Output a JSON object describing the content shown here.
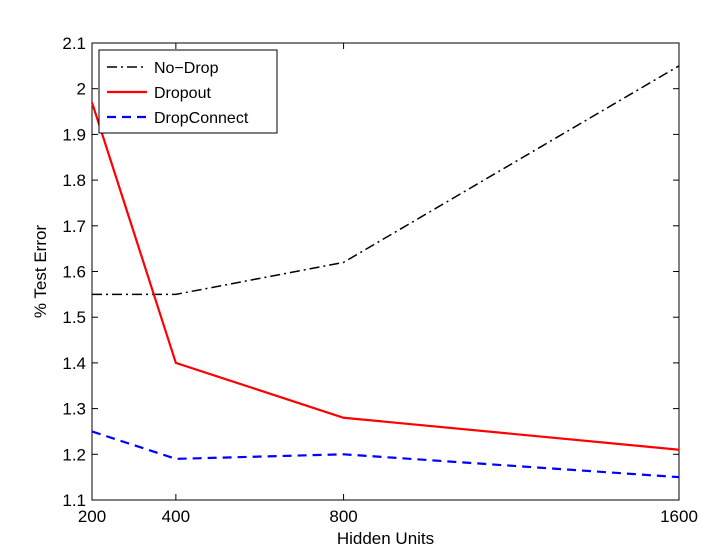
{
  "chart_data": {
    "type": "line",
    "title": "",
    "xlabel": "Hidden Units",
    "ylabel": "% Test Error",
    "x": [
      200,
      400,
      800,
      1600
    ],
    "x_ticks": [
      200,
      400,
      800,
      1600
    ],
    "x_tick_labels": [
      "200",
      "400",
      "800",
      "1600"
    ],
    "xlim": [
      200,
      1600
    ],
    "ylim": [
      1.1,
      2.1
    ],
    "y_ticks": [
      1.1,
      1.2,
      1.3,
      1.4,
      1.5,
      1.6,
      1.7,
      1.8,
      1.9,
      2.0,
      2.1
    ],
    "y_tick_labels": [
      "1.1",
      "1.2",
      "1.3",
      "1.4",
      "1.5",
      "1.6",
      "1.7",
      "1.8",
      "1.9",
      "2",
      "2.1"
    ],
    "grid": false,
    "legend_position": "top-left",
    "series": [
      {
        "name": "No−Drop",
        "values": [
          1.55,
          1.55,
          1.62,
          2.05
        ],
        "color": "#000000",
        "style": "dash-dot"
      },
      {
        "name": "Dropout",
        "values": [
          1.97,
          1.4,
          1.28,
          1.21
        ],
        "color": "#ff0000",
        "style": "solid"
      },
      {
        "name": "DropConnect",
        "values": [
          1.25,
          1.19,
          1.2,
          1.15
        ],
        "color": "#0000ff",
        "style": "dashed"
      }
    ]
  }
}
